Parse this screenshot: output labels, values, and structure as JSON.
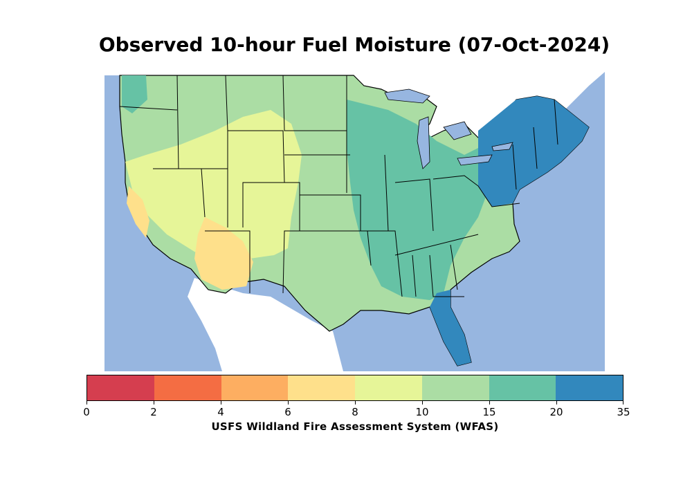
{
  "map": {
    "title": "Observed 10-hour Fuel Moisture (07-Oct-2024)",
    "colors": {
      "water": "#97b6e0",
      "land_outside": "#ffffff",
      "border": "#000000"
    }
  },
  "colorbar": {
    "label": "USFS Wildland Fire Assessment System (WFAS)",
    "bins": [
      {
        "from": "0",
        "to": "2",
        "color": "#d53e4f"
      },
      {
        "from": "2",
        "to": "4",
        "color": "#f46d43"
      },
      {
        "from": "4",
        "to": "6",
        "color": "#fdae61"
      },
      {
        "from": "6",
        "to": "8",
        "color": "#fee08b"
      },
      {
        "from": "8",
        "to": "10",
        "color": "#e6f598"
      },
      {
        "from": "10",
        "to": "15",
        "color": "#abdda4"
      },
      {
        "from": "15",
        "to": "20",
        "color": "#66c2a5"
      },
      {
        "from": "20",
        "to": "35",
        "color": "#3288bd"
      }
    ],
    "tick_labels": [
      "0",
      "2",
      "4",
      "6",
      "8",
      "10",
      "15",
      "20",
      "35"
    ]
  }
}
